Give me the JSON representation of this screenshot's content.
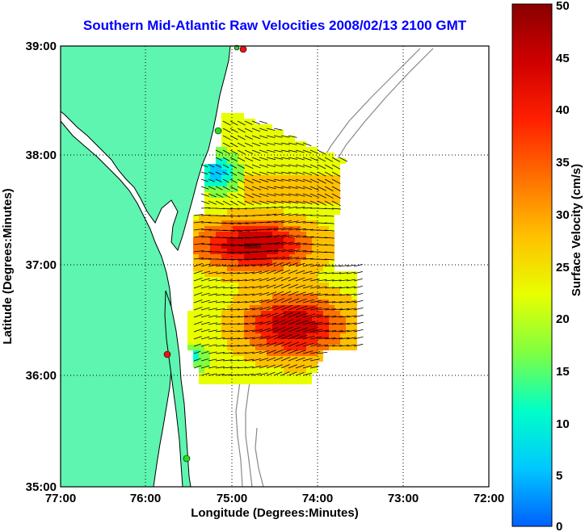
{
  "title": "Southern Mid-Atlantic Raw Velocities 2008/02/13 2100 GMT",
  "x_axis": {
    "label": "Longitude (Degrees:Minutes)",
    "ticks": [
      "77:00",
      "76:00",
      "75:00",
      "74:00",
      "73:00",
      "72:00"
    ]
  },
  "y_axis": {
    "label": "Latitude (Degrees:Minutes)",
    "ticks": [
      "39:00",
      "38:00",
      "37:00",
      "36:00",
      "35:00"
    ]
  },
  "colorbar": {
    "label": "Surface Velocity (cm/s)",
    "ticks": [
      "50",
      "45",
      "40",
      "35",
      "30",
      "25",
      "20",
      "15",
      "10",
      "5",
      "0"
    ],
    "min": 0,
    "max": 50,
    "colors": [
      "#0060ff",
      "#00c8ff",
      "#00ffc8",
      "#80ff40",
      "#e8ff00",
      "#ffc000",
      "#ff7000",
      "#ff2000",
      "#d00000",
      "#8a0000"
    ]
  },
  "map_colors": {
    "land": "#5ef5b0",
    "coast": "#000000",
    "bathymetry": "#888888",
    "grid": "#000000"
  },
  "station_colors": {
    "green": "#22dd22",
    "red": "#ee1111"
  }
}
